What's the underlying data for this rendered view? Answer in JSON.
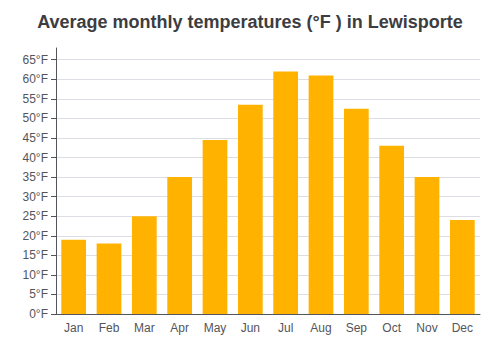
{
  "chart_data": {
    "type": "bar",
    "title": "Average monthly temperatures (°F ) in Lewisporte",
    "categories": [
      "Jan",
      "Feb",
      "Mar",
      "Apr",
      "May",
      "Jun",
      "Jul",
      "Aug",
      "Sep",
      "Oct",
      "Nov",
      "Dec"
    ],
    "values": [
      19,
      18,
      25,
      35,
      44.5,
      53.5,
      62,
      61,
      52.5,
      43,
      35,
      24
    ],
    "color": "#FFB300",
    "ylim": [
      0,
      68
    ],
    "yticks": [
      {
        "value": 0,
        "label": "0°F"
      },
      {
        "value": 5,
        "label": "5°F"
      },
      {
        "value": 10,
        "label": "10°F"
      },
      {
        "value": 15,
        "label": "15°F"
      },
      {
        "value": 20,
        "label": "20°F"
      },
      {
        "value": 25,
        "label": "25°F"
      },
      {
        "value": 30,
        "label": "30°F"
      },
      {
        "value": 35,
        "label": "35°F"
      },
      {
        "value": 40,
        "label": "40°F"
      },
      {
        "value": 45,
        "label": "45°F"
      },
      {
        "value": 50,
        "label": "50°F"
      },
      {
        "value": 55,
        "label": "55°F"
      },
      {
        "value": 60,
        "label": "60°F"
      },
      {
        "value": 65,
        "label": "65°F"
      }
    ],
    "grid": true
  }
}
